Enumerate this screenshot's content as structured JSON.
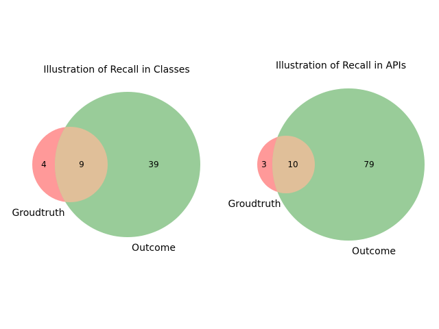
{
  "diagrams": [
    {
      "title": "Illustration of Recall in Classes",
      "set_a_label": "Groudtruth",
      "set_b_label": "Outcome",
      "only_a": "4",
      "both": "9",
      "only_b": "39"
    },
    {
      "title": "Illustration of Recall in APIs",
      "set_a_label": "Groudtruth",
      "set_b_label": "Outcome",
      "only_a": "3",
      "both": "10",
      "only_b": "79"
    }
  ],
  "colors": {
    "set_a": "#ff9999",
    "set_b": "#99cc99",
    "overlap": "#e0bf99"
  }
}
